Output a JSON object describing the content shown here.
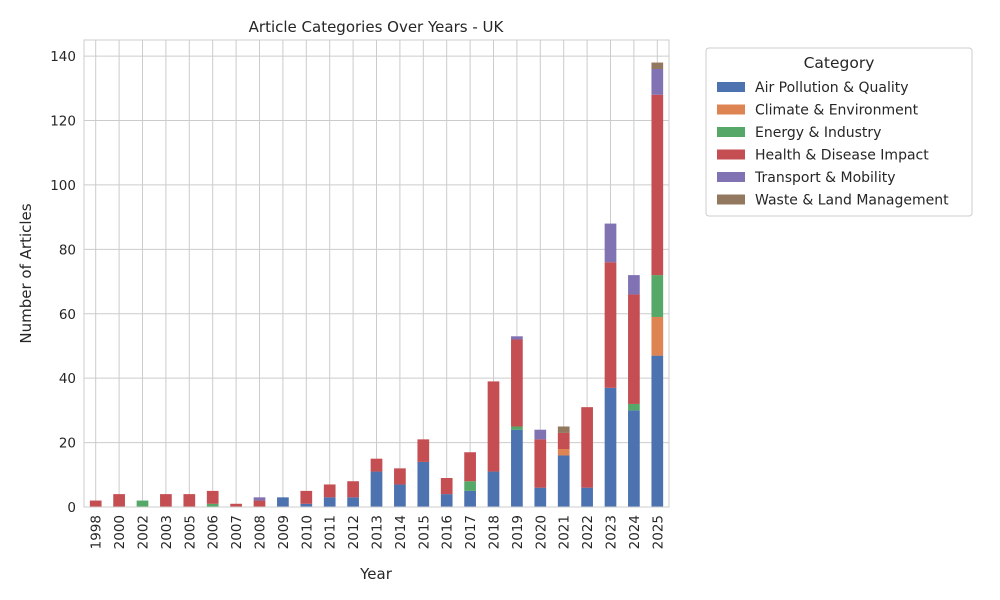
{
  "chart_data": {
    "type": "bar",
    "stacked": true,
    "title": "Article Categories Over Years - UK",
    "xlabel": "Year",
    "ylabel": "Number of Articles",
    "ylim": [
      0,
      145
    ],
    "yticks": [
      0,
      20,
      40,
      60,
      80,
      100,
      120,
      140
    ],
    "grid": true,
    "legend_title": "Category",
    "legend_position": "outside-right",
    "categories": [
      "1998",
      "2000",
      "2002",
      "2003",
      "2005",
      "2006",
      "2007",
      "2008",
      "2009",
      "2010",
      "2011",
      "2012",
      "2013",
      "2014",
      "2015",
      "2016",
      "2017",
      "2018",
      "2019",
      "2020",
      "2021",
      "2022",
      "2023",
      "2024",
      "2025"
    ],
    "series": [
      {
        "name": "Air Pollution & Quality",
        "color": "#4c72b0",
        "values": [
          0,
          0,
          0,
          0,
          0,
          0,
          0,
          0,
          3,
          1,
          3,
          3,
          11,
          7,
          14,
          4,
          5,
          11,
          24,
          6,
          16,
          6,
          37,
          30,
          47
        ]
      },
      {
        "name": "Climate & Environment",
        "color": "#dd8452",
        "values": [
          0,
          0,
          0,
          0,
          0,
          0,
          0,
          0,
          0,
          0,
          0,
          0,
          0,
          0,
          0,
          0,
          0,
          0,
          0,
          0,
          2,
          0,
          0,
          0,
          12
        ]
      },
      {
        "name": "Energy & Industry",
        "color": "#55a868",
        "values": [
          0,
          0,
          2,
          0,
          0,
          1,
          0,
          0,
          0,
          0,
          0,
          0,
          0,
          0,
          0,
          0,
          3,
          0,
          1,
          0,
          0,
          0,
          0,
          2,
          13
        ]
      },
      {
        "name": "Health & Disease Impact",
        "color": "#c44e52",
        "values": [
          2,
          4,
          0,
          4,
          4,
          4,
          1,
          2,
          0,
          4,
          4,
          5,
          4,
          5,
          7,
          5,
          9,
          28,
          27,
          15,
          5,
          25,
          39,
          34,
          56
        ]
      },
      {
        "name": "Transport & Mobility",
        "color": "#8172b3",
        "values": [
          0,
          0,
          0,
          0,
          0,
          0,
          0,
          1,
          0,
          0,
          0,
          0,
          0,
          0,
          0,
          0,
          0,
          0,
          1,
          3,
          0,
          0,
          12,
          6,
          8
        ]
      },
      {
        "name": "Waste & Land Management",
        "color": "#937860",
        "values": [
          0,
          0,
          0,
          0,
          0,
          0,
          0,
          0,
          0,
          0,
          0,
          0,
          0,
          0,
          0,
          0,
          0,
          0,
          0,
          0,
          2,
          0,
          0,
          0,
          2
        ]
      }
    ]
  }
}
